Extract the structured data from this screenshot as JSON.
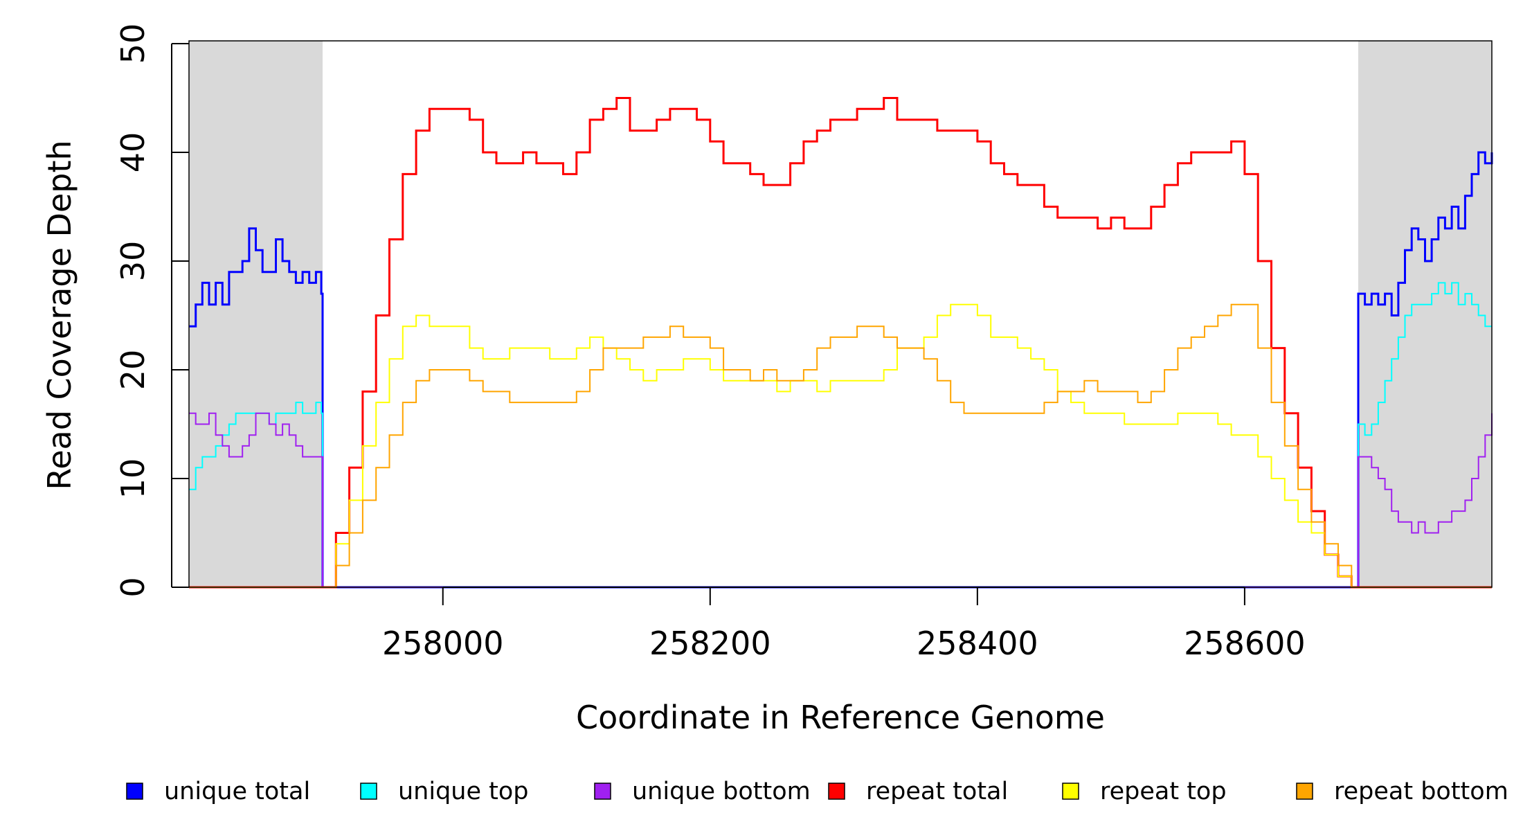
{
  "chart_data": {
    "type": "line",
    "title": "",
    "xlabel": "Coordinate in Reference Genome",
    "ylabel": "Read Coverage Depth",
    "xlim": [
      257810,
      258785
    ],
    "ylim": [
      0,
      50
    ],
    "x_ticks": [
      258000,
      258200,
      258400,
      258600
    ],
    "x_tick_labels": [
      "258000",
      "258200",
      "258400",
      "258600"
    ],
    "y_ticks": [
      0,
      10,
      20,
      30,
      40,
      50
    ],
    "y_tick_labels": [
      "0",
      "10",
      "20",
      "30",
      "40",
      "50"
    ],
    "shaded_regions": [
      {
        "x0": 257810,
        "x1": 257910,
        "color": "#d9d9d9"
      },
      {
        "x0": 258685,
        "x1": 258785,
        "color": "#d9d9d9"
      }
    ],
    "legend": [
      {
        "label": "unique total",
        "color": "#0000ff"
      },
      {
        "label": "unique top",
        "color": "#00ffff"
      },
      {
        "label": "unique bottom",
        "color": "#a020f0"
      },
      {
        "label": "repeat total",
        "color": "#ff0000"
      },
      {
        "label": "repeat top",
        "color": "#ffff00"
      },
      {
        "label": "repeat bottom",
        "color": "#ffa500"
      }
    ],
    "series": [
      {
        "name": "unique total",
        "color": "#0000ff",
        "segments": [
          {
            "x": [
              257810,
              257815,
              257820,
              257825,
              257830,
              257835,
              257840,
              257845,
              257850,
              257855,
              257860,
              257865,
              257870,
              257875,
              257880,
              257885,
              257890,
              257895,
              257900,
              257905,
              257909,
              257910,
              257910
            ],
            "y": [
              24,
              26,
              28,
              26,
              28,
              26,
              29,
              29,
              30,
              33,
              31,
              29,
              29,
              32,
              30,
              29,
              28,
              29,
              28,
              29,
              27,
              27,
              0
            ]
          },
          {
            "x": [
              257910,
              258685
            ],
            "y": [
              0,
              0
            ]
          },
          {
            "x": [
              258685,
              258685,
              258690,
              258695,
              258700,
              258705,
              258710,
              258715,
              258720,
              258725,
              258730,
              258735,
              258740,
              258745,
              258750,
              258755,
              258760,
              258765,
              258770,
              258775,
              258780,
              258785
            ],
            "y": [
              0,
              27,
              26,
              27,
              26,
              27,
              25,
              28,
              31,
              33,
              32,
              30,
              32,
              34,
              33,
              35,
              33,
              36,
              38,
              40,
              39,
              40
            ]
          }
        ]
      },
      {
        "name": "unique top",
        "color": "#00ffff",
        "segments": [
          {
            "x": [
              257810,
              257815,
              257820,
              257825,
              257830,
              257835,
              257840,
              257845,
              257850,
              257855,
              257860,
              257865,
              257870,
              257875,
              257880,
              257885,
              257890,
              257895,
              257900,
              257905,
              257909,
              257910,
              257910
            ],
            "y": [
              9,
              11,
              12,
              12,
              13,
              14,
              15,
              16,
              16,
              16,
              16,
              16,
              15,
              16,
              16,
              16,
              17,
              16,
              16,
              17,
              16,
              16,
              0
            ]
          },
          {
            "x": [
              258685,
              258685,
              258690,
              258695,
              258700,
              258705,
              258710,
              258715,
              258720,
              258725,
              258730,
              258735,
              258740,
              258745,
              258750,
              258755,
              258760,
              258765,
              258770,
              258775,
              258780,
              258785
            ],
            "y": [
              0,
              15,
              14,
              15,
              17,
              19,
              21,
              23,
              25,
              26,
              26,
              26,
              27,
              28,
              27,
              28,
              26,
              27,
              26,
              25,
              24,
              24
            ]
          }
        ]
      },
      {
        "name": "unique bottom",
        "color": "#a020f0",
        "segments": [
          {
            "x": [
              257810,
              257815,
              257820,
              257825,
              257830,
              257835,
              257840,
              257845,
              257850,
              257855,
              257860,
              257865,
              257870,
              257875,
              257880,
              257885,
              257890,
              257895,
              257900,
              257905,
              257909,
              257910
            ],
            "y": [
              16,
              15,
              15,
              16,
              14,
              13,
              12,
              12,
              13,
              14,
              16,
              16,
              15,
              14,
              15,
              14,
              13,
              12,
              12,
              12,
              12,
              0
            ]
          },
          {
            "x": [
              257910,
              258685
            ],
            "y": [
              0,
              0
            ]
          },
          {
            "x": [
              258685,
              258685,
              258690,
              258695,
              258700,
              258705,
              258710,
              258715,
              258720,
              258725,
              258730,
              258735,
              258740,
              258745,
              258750,
              258755,
              258760,
              258765,
              258770,
              258775,
              258780,
              258785
            ],
            "y": [
              0,
              12,
              12,
              11,
              10,
              9,
              7,
              6,
              6,
              5,
              6,
              5,
              5,
              6,
              6,
              7,
              7,
              8,
              10,
              12,
              14,
              16
            ]
          }
        ]
      },
      {
        "name": "repeat total",
        "color": "#ff0000",
        "segments": [
          {
            "x": [
              257810,
              257910,
              257920,
              257930,
              257940,
              257950,
              257960,
              257970,
              257980,
              257990,
              258000,
              258010,
              258020,
              258030,
              258040,
              258050,
              258060,
              258070,
              258080,
              258090,
              258100,
              258110,
              258120,
              258130,
              258140,
              258150,
              258160,
              258170,
              258180,
              258190,
              258200,
              258210,
              258220,
              258230,
              258240,
              258250,
              258260,
              258270,
              258280,
              258290,
              258300,
              258310,
              258320,
              258330,
              258340,
              258350,
              258360,
              258370,
              258380,
              258390,
              258400,
              258410,
              258420,
              258430,
              258440,
              258450,
              258460,
              258470,
              258480,
              258490,
              258500,
              258510,
              258520,
              258530,
              258540,
              258550,
              258560,
              258570,
              258580,
              258590,
              258600,
              258610,
              258620,
              258630,
              258640,
              258650,
              258660,
              258670,
              258680,
              258685,
              258785
            ],
            "y": [
              0,
              0,
              5,
              11,
              18,
              25,
              32,
              38,
              42,
              44,
              44,
              44,
              43,
              40,
              39,
              39,
              40,
              39,
              39,
              38,
              40,
              43,
              44,
              45,
              42,
              42,
              43,
              44,
              44,
              43,
              41,
              39,
              39,
              38,
              37,
              37,
              39,
              41,
              42,
              43,
              43,
              44,
              44,
              45,
              43,
              43,
              43,
              42,
              42,
              42,
              41,
              39,
              38,
              37,
              37,
              35,
              34,
              34,
              34,
              33,
              34,
              33,
              33,
              35,
              37,
              39,
              40,
              40,
              40,
              41,
              38,
              30,
              22,
              16,
              11,
              7,
              3,
              1,
              0,
              0,
              0
            ]
          }
        ]
      },
      {
        "name": "repeat top",
        "color": "#ffff00",
        "segments": [
          {
            "x": [
              257810,
              257910,
              257920,
              257930,
              257940,
              257950,
              257960,
              257970,
              257980,
              257990,
              258000,
              258010,
              258020,
              258030,
              258040,
              258050,
              258060,
              258070,
              258080,
              258090,
              258100,
              258110,
              258120,
              258130,
              258140,
              258150,
              258160,
              258170,
              258180,
              258190,
              258200,
              258210,
              258220,
              258230,
              258240,
              258250,
              258260,
              258270,
              258280,
              258290,
              258300,
              258310,
              258320,
              258330,
              258340,
              258350,
              258360,
              258370,
              258380,
              258390,
              258400,
              258410,
              258420,
              258430,
              258440,
              258450,
              258460,
              258470,
              258480,
              258490,
              258500,
              258510,
              258520,
              258530,
              258540,
              258550,
              258560,
              258570,
              258580,
              258590,
              258600,
              258610,
              258620,
              258630,
              258640,
              258650,
              258660,
              258670,
              258680,
              258685,
              258785
            ],
            "y": [
              0,
              0,
              4,
              8,
              13,
              17,
              21,
              24,
              25,
              24,
              24,
              24,
              22,
              21,
              21,
              22,
              22,
              22,
              21,
              21,
              22,
              23,
              22,
              21,
              20,
              19,
              20,
              20,
              21,
              21,
              20,
              19,
              19,
              19,
              19,
              18,
              19,
              19,
              18,
              19,
              19,
              19,
              19,
              20,
              22,
              22,
              23,
              25,
              26,
              26,
              25,
              23,
              23,
              22,
              21,
              20,
              18,
              17,
              16,
              16,
              16,
              15,
              15,
              15,
              15,
              16,
              16,
              16,
              15,
              14,
              14,
              12,
              10,
              8,
              6,
              5,
              3,
              1,
              0,
              0,
              0
            ]
          }
        ]
      },
      {
        "name": "repeat bottom",
        "color": "#ffa500",
        "segments": [
          {
            "x": [
              257810,
              257910,
              257920,
              257930,
              257940,
              257950,
              257960,
              257970,
              257980,
              257990,
              258000,
              258010,
              258020,
              258030,
              258040,
              258050,
              258060,
              258070,
              258080,
              258090,
              258100,
              258110,
              258120,
              258130,
              258140,
              258150,
              258160,
              258170,
              258180,
              258190,
              258200,
              258210,
              258220,
              258230,
              258240,
              258250,
              258260,
              258270,
              258280,
              258290,
              258300,
              258310,
              258320,
              258330,
              258340,
              258350,
              258360,
              258370,
              258380,
              258390,
              258400,
              258410,
              258420,
              258430,
              258440,
              258450,
              258460,
              258470,
              258480,
              258490,
              258500,
              258510,
              258520,
              258530,
              258540,
              258550,
              258560,
              258570,
              258580,
              258590,
              258600,
              258610,
              258620,
              258630,
              258640,
              258650,
              258660,
              258670,
              258680,
              258685,
              258785
            ],
            "y": [
              0,
              0,
              2,
              5,
              8,
              11,
              14,
              17,
              19,
              20,
              20,
              20,
              19,
              18,
              18,
              17,
              17,
              17,
              17,
              17,
              18,
              20,
              22,
              22,
              22,
              23,
              23,
              24,
              23,
              23,
              22,
              20,
              20,
              19,
              20,
              19,
              19,
              20,
              22,
              23,
              23,
              24,
              24,
              23,
              22,
              22,
              21,
              19,
              17,
              16,
              16,
              16,
              16,
              16,
              16,
              17,
              18,
              18,
              19,
              18,
              18,
              18,
              17,
              18,
              20,
              22,
              23,
              24,
              25,
              26,
              26,
              22,
              17,
              13,
              9,
              6,
              4,
              2,
              0,
              0,
              0
            ]
          }
        ]
      }
    ]
  }
}
